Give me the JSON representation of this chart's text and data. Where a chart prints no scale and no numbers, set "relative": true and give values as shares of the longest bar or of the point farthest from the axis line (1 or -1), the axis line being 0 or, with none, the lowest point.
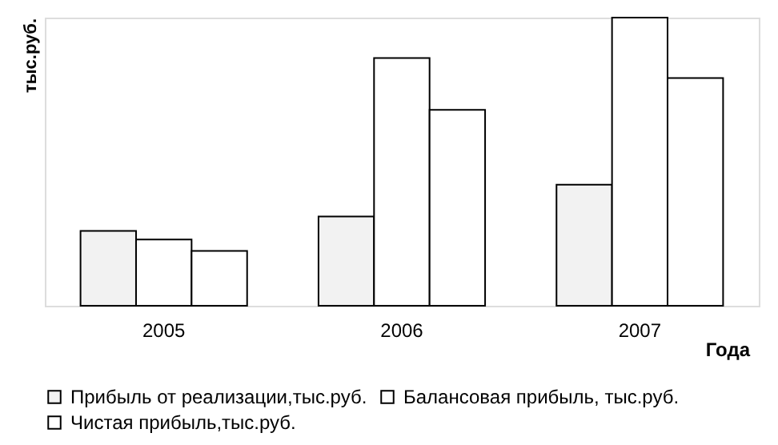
{
  "chart_data": {
    "type": "bar",
    "relative": true,
    "ylabel": "тыс.руб.",
    "xlabel": "Года",
    "categories": [
      "2005",
      "2006",
      "2007"
    ],
    "series": [
      {
        "name": "Прибыль от реализации,тыс.руб.",
        "color": "#f2f2f2",
        "values": [
          0.26,
          0.31,
          0.42
        ]
      },
      {
        "name": "Балансовая прибыль, тыс.руб.",
        "color": "#ffffff",
        "values": [
          0.23,
          0.86,
          1
        ]
      },
      {
        "name": "Чистая прибыль,тыс.руб.",
        "color": "#ffffff",
        "values": [
          0.19,
          0.68,
          0.79
        ]
      }
    ],
    "legend": "bottom",
    "grid": false
  }
}
